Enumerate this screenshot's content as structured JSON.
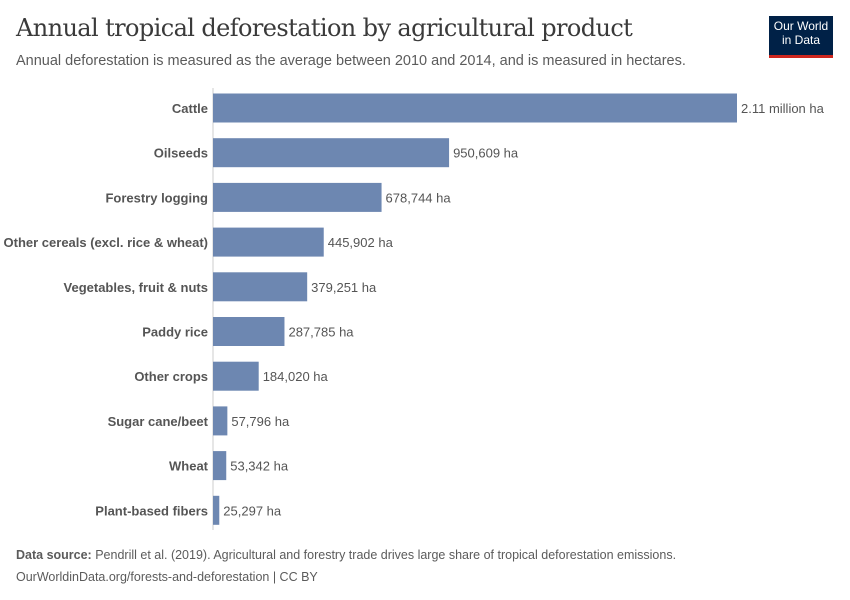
{
  "title": "Annual tropical deforestation by agricultural product",
  "subtitle": "Annual deforestation is measured as the average between 2010 and 2014, and is measured in hectares.",
  "logo": {
    "line1": "Our World",
    "line2": "in Data"
  },
  "footer": {
    "source_label": "Data source:",
    "source_text": " Pendrill et al. (2019). Agricultural and forestry trade drives large share of tropical deforestation emissions.",
    "url": "OurWorldinData.org/forests-and-deforestation | CC BY"
  },
  "colors": {
    "bar": "#6d87b1",
    "logo_bg": "#002147",
    "logo_accent": "#ce261e"
  },
  "chart_data": {
    "type": "bar",
    "orientation": "horizontal",
    "unit": "ha",
    "categories": [
      "Cattle",
      "Oilseeds",
      "Forestry logging",
      "Other cereals (excl. rice & wheat)",
      "Vegetables, fruit & nuts",
      "Paddy rice",
      "Other crops",
      "Sugar cane/beet",
      "Wheat",
      "Plant-based fibers"
    ],
    "values": [
      2110000,
      950609,
      678744,
      445902,
      379251,
      287785,
      184020,
      57796,
      53342,
      25297
    ],
    "labels": [
      "2.11 million ha",
      "950,609 ha",
      "678,744 ha",
      "445,902 ha",
      "379,251 ha",
      "287,785 ha",
      "184,020 ha",
      "57,796 ha",
      "53,342 ha",
      "25,297 ha"
    ],
    "grid": false
  }
}
